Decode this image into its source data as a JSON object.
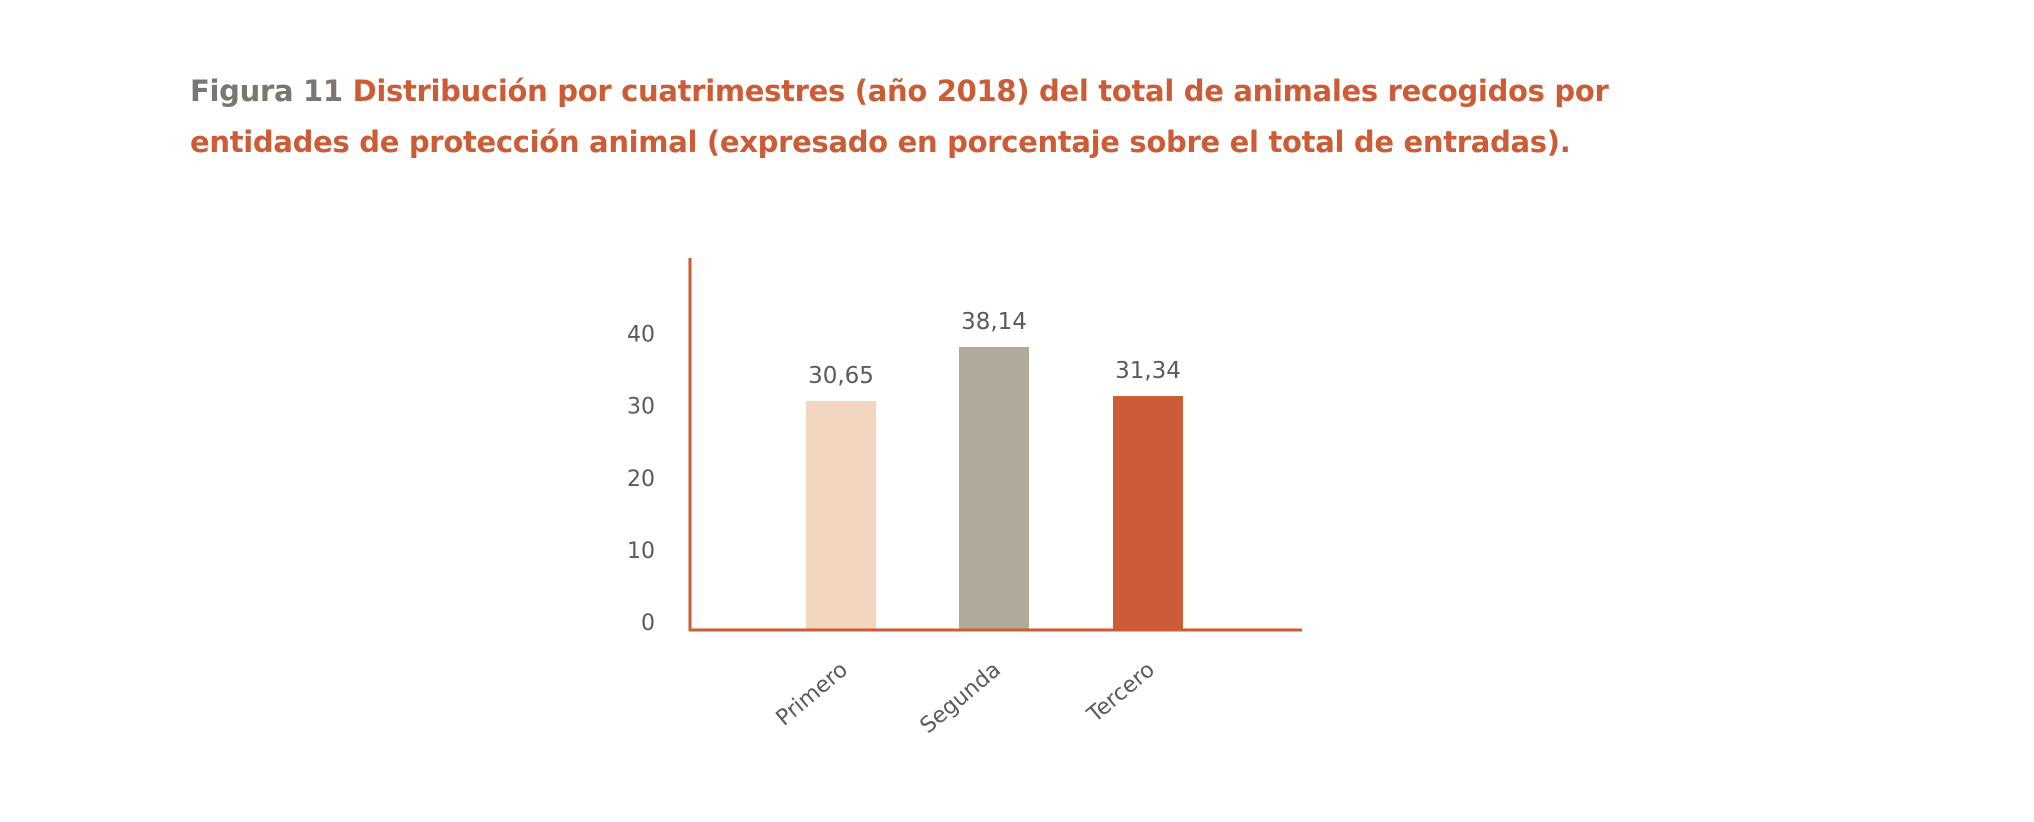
{
  "figure": {
    "label": "Figura 11",
    "title": "Distribución por cuatrimestres (año 2018) del total de animales recogidos por entidades de protección animal (expresado en porcentaje sobre el total de entradas)."
  },
  "colors": {
    "axis": "#cc5c36",
    "label_text": "#5e5a55",
    "title_accent": "#cc5c36",
    "title_gray": "#7a7670"
  },
  "chart_data": {
    "type": "bar",
    "title": "Distribución por cuatrimestres (año 2018) del total de animales recogidos por entidades de protección animal (expresado en porcentaje sobre el total de entradas).",
    "xlabel": "",
    "ylabel": "",
    "categories": [
      "Primero",
      "Segunda",
      "Tercero"
    ],
    "values": [
      30.65,
      38.14,
      31.34
    ],
    "value_labels": [
      "30,65",
      "38,14",
      "31,34"
    ],
    "bar_colors": [
      "#f3d6c0",
      "#b0aa9a",
      "#cc5c36"
    ],
    "yticks": [
      0,
      10,
      20,
      30,
      40
    ],
    "ylim": [
      0,
      50
    ],
    "grid": false,
    "legend": "none"
  }
}
